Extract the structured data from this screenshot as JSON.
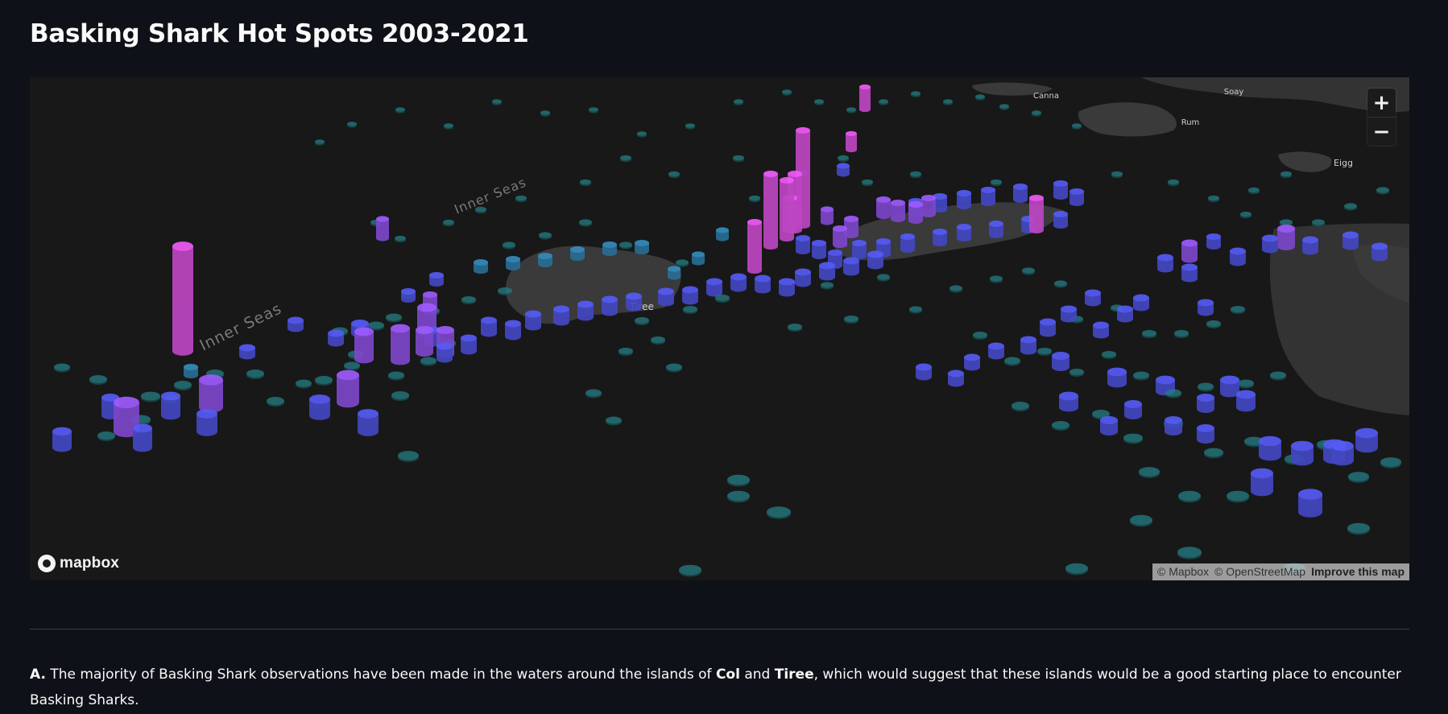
{
  "page": {
    "title": "Basking Shark Hot Spots 2003-2021"
  },
  "map": {
    "provider_logo": "mapbox",
    "zoom_in_label": "+",
    "zoom_out_label": "−",
    "attribution": {
      "mapbox": "© Mapbox",
      "osm": "© OpenStreetMap",
      "improve": "Improve this map"
    },
    "place_labels": {
      "inner_seas_1": "Inner Seas",
      "inner_seas_2": "Inner Seas",
      "tiree": "Tiree",
      "canna": "Canna",
      "soay": "Soay",
      "rum": "Rum",
      "eigg": "Eigg"
    },
    "layer": {
      "type": "3D column hexagon layer",
      "color_ramp": [
        "#1f6e74",
        "#2e79a6",
        "#4a4fd6",
        "#8a4fe0",
        "#d24ed8"
      ],
      "columns": [
        {
          "level": 5,
          "value": 1.0
        },
        {
          "level": 5,
          "value": 0.55
        },
        {
          "level": 5,
          "value": 0.5
        },
        {
          "level": 5,
          "value": 0.45
        },
        {
          "level": 5,
          "value": 0.4
        },
        {
          "level": 4,
          "value": 0.3
        },
        {
          "level": 4,
          "value": 0.25
        },
        {
          "level": 3,
          "value": 0.15
        },
        {
          "level": 2,
          "value": 0.08
        },
        {
          "level": 1,
          "value": 0.02
        }
      ]
    }
  },
  "paragraph": {
    "marker": "A.",
    "text_1": " The majority of Basking Shark observations have been made in the waters around the islands of ",
    "island_1": "Col",
    "text_2": " and ",
    "island_2": "Tiree",
    "text_3": ", which would suggest that these islands would be a good starting place to encounter Basking Sharks."
  }
}
